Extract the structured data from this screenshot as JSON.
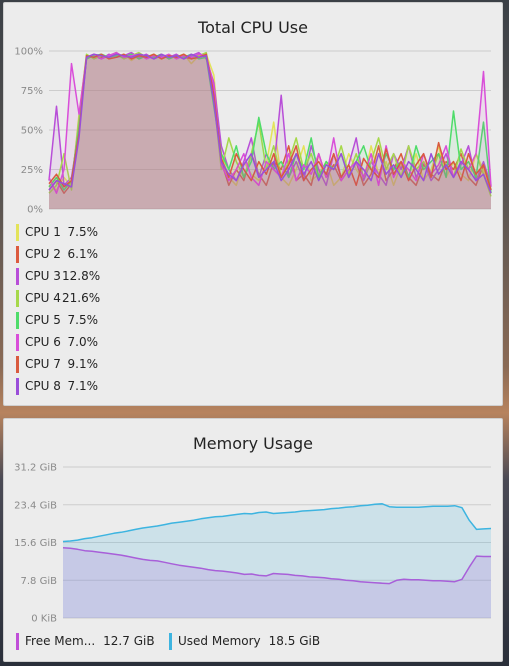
{
  "cpu_panel": {
    "title": "Total CPU Use",
    "legend": [
      {
        "name": "CPU 1",
        "value": "7.5%",
        "color": "#e3e35a"
      },
      {
        "name": "CPU 2",
        "value": "6.1%",
        "color": "#dc5a3e"
      },
      {
        "name": "CPU 3",
        "value": "12.8%",
        "color": "#b84ed8"
      },
      {
        "name": "CPU 4",
        "value": "21.6%",
        "color": "#a6d84a"
      },
      {
        "name": "CPU 5",
        "value": "7.5%",
        "color": "#4fdc6a"
      },
      {
        "name": "CPU 6",
        "value": "7.0%",
        "color": "#d94ed9"
      },
      {
        "name": "CPU 7",
        "value": "9.1%",
        "color": "#d95a3e"
      },
      {
        "name": "CPU 8",
        "value": "7.1%",
        "color": "#9a4ed9"
      }
    ]
  },
  "memory_panel": {
    "title": "Memory Usage",
    "legend": [
      {
        "name": "Free Mem...",
        "value": "12.7 GiB",
        "color": "#c04ed8"
      },
      {
        "name": "Used Memory",
        "value": "18.5 GiB",
        "color": "#3db4e0"
      }
    ]
  },
  "chart_data": [
    {
      "type": "line",
      "title": "Total CPU Use",
      "y_tick_labels": [
        "100%",
        "75%",
        "50%",
        "25%",
        "0%"
      ],
      "ylim": [
        0,
        100
      ],
      "grid": true,
      "legend_placement": "below",
      "x": [
        0,
        1,
        2,
        3,
        4,
        5,
        6,
        7,
        8,
        9,
        10,
        11,
        12,
        13,
        14,
        15,
        16,
        17,
        18,
        19,
        20,
        21,
        22,
        23,
        24,
        25,
        26,
        27,
        28,
        29,
        30,
        31,
        32,
        33,
        34,
        35,
        36,
        37,
        38,
        39,
        40,
        41,
        42,
        43,
        44,
        45,
        46,
        47,
        48,
        49,
        50,
        51,
        52,
        53,
        54,
        55,
        56,
        57,
        58,
        59
      ],
      "series": [
        {
          "name": "CPU 1",
          "values": [
            15,
            12,
            20,
            14,
            60,
            97,
            96,
            98,
            95,
            97,
            98,
            94,
            97,
            96,
            98,
            95,
            97,
            96,
            98,
            92,
            97,
            98,
            85,
            35,
            20,
            15,
            30,
            22,
            18,
            28,
            55,
            20,
            15,
            25,
            40,
            18,
            22,
            30,
            15,
            20,
            35,
            25,
            18,
            40,
            22,
            30,
            15,
            28,
            20,
            35,
            18,
            25,
            40,
            20,
            30,
            22,
            18,
            35,
            25,
            10
          ]
        },
        {
          "name": "CPU 2",
          "values": [
            12,
            18,
            10,
            16,
            55,
            95,
            98,
            96,
            97,
            99,
            96,
            98,
            95,
            97,
            96,
            98,
            95,
            97,
            96,
            95,
            98,
            96,
            75,
            30,
            15,
            25,
            18,
            35,
            22,
            15,
            30,
            25,
            40,
            18,
            22,
            15,
            35,
            20,
            28,
            18,
            25,
            30,
            15,
            22,
            40,
            18,
            25,
            35,
            20,
            15,
            28,
            22,
            18,
            30,
            25,
            35,
            20,
            15,
            28,
            12
          ]
        },
        {
          "name": "CPU 3",
          "values": [
            18,
            65,
            15,
            20,
            50,
            96,
            97,
            95,
            98,
            96,
            97,
            99,
            96,
            98,
            95,
            97,
            96,
            98,
            95,
            97,
            99,
            95,
            80,
            40,
            25,
            18,
            30,
            45,
            20,
            35,
            25,
            72,
            20,
            30,
            18,
            40,
            25,
            15,
            35,
            20,
            28,
            45,
            18,
            30,
            22,
            15,
            35,
            25,
            40,
            20,
            30,
            18,
            25,
            35,
            20,
            28,
            40,
            18,
            30,
            15
          ]
        },
        {
          "name": "CPU 4",
          "values": [
            10,
            15,
            35,
            12,
            58,
            98,
            95,
            97,
            96,
            98,
            95,
            97,
            99,
            96,
            98,
            95,
            97,
            96,
            98,
            95,
            97,
            99,
            70,
            25,
            45,
            30,
            20,
            35,
            55,
            25,
            40,
            20,
            30,
            45,
            25,
            35,
            20,
            30,
            25,
            40,
            22,
            35,
            20,
            30,
            45,
            25,
            35,
            20,
            40,
            25,
            30,
            22,
            35,
            28,
            20,
            38,
            25,
            35,
            22,
            8
          ]
        },
        {
          "name": "CPU 5",
          "values": [
            14,
            20,
            12,
            18,
            52,
            95,
            97,
            98,
            96,
            97,
            96,
            98,
            95,
            97,
            96,
            98,
            95,
            97,
            96,
            98,
            95,
            96,
            65,
            35,
            25,
            40,
            20,
            30,
            58,
            35,
            25,
            30,
            20,
            35,
            25,
            45,
            20,
            30,
            25,
            35,
            20,
            30,
            40,
            25,
            20,
            35,
            25,
            30,
            20,
            40,
            25,
            30,
            35,
            20,
            62,
            25,
            30,
            20,
            55,
            10
          ]
        },
        {
          "name": "CPU 6",
          "values": [
            20,
            10,
            25,
            92,
            60,
            96,
            98,
            95,
            97,
            99,
            96,
            97,
            98,
            95,
            97,
            96,
            98,
            95,
            97,
            96,
            98,
            97,
            78,
            28,
            18,
            25,
            35,
            20,
            15,
            30,
            25,
            20,
            35,
            18,
            28,
            22,
            35,
            20,
            45,
            18,
            25,
            30,
            20,
            35,
            15,
            40,
            20,
            30,
            25,
            18,
            35,
            22,
            28,
            40,
            20,
            30,
            25,
            35,
            87,
            14
          ]
        },
        {
          "name": "CPU 7",
          "values": [
            16,
            22,
            14,
            18,
            48,
            97,
            96,
            98,
            95,
            96,
            98,
            95,
            97,
            96,
            98,
            95,
            97,
            96,
            98,
            95,
            96,
            98,
            72,
            32,
            20,
            35,
            25,
            18,
            30,
            22,
            35,
            20,
            28,
            40,
            18,
            25,
            30,
            22,
            35,
            20,
            28,
            15,
            32,
            25,
            20,
            38,
            22,
            30,
            18,
            28,
            35,
            20,
            42,
            25,
            30,
            18,
            35,
            22,
            28,
            12
          ]
        },
        {
          "name": "CPU 8",
          "values": [
            12,
            18,
            16,
            14,
            45,
            96,
            98,
            97,
            96,
            98,
            97,
            96,
            98,
            97,
            95,
            98,
            96,
            97,
            95,
            98,
            96,
            97,
            68,
            30,
            22,
            18,
            28,
            35,
            20,
            25,
            30,
            18,
            25,
            35,
            22,
            30,
            18,
            28,
            25,
            35,
            20,
            30,
            25,
            18,
            35,
            22,
            28,
            20,
            30,
            25,
            18,
            35,
            22,
            28,
            20,
            30,
            25,
            18,
            22,
            10
          ]
        }
      ]
    },
    {
      "type": "area",
      "title": "Memory Usage",
      "y_tick_labels": [
        "31.2 GiB",
        "23.4 GiB",
        "15.6 GiB",
        "7.8 GiB",
        "0 KiB"
      ],
      "ylim": [
        0,
        31.2
      ],
      "grid": true,
      "legend_placement": "below",
      "x": [
        0,
        1,
        2,
        3,
        4,
        5,
        6,
        7,
        8,
        9,
        10,
        11,
        12,
        13,
        14,
        15,
        16,
        17,
        18,
        19,
        20,
        21,
        22,
        23,
        24,
        25,
        26,
        27,
        28,
        29,
        30,
        31,
        32,
        33,
        34,
        35,
        36,
        37,
        38,
        39,
        40,
        41,
        42,
        43,
        44,
        45,
        46,
        47,
        48,
        49,
        50,
        51,
        52,
        53,
        54,
        55,
        56,
        57,
        58,
        59
      ],
      "series": [
        {
          "name": "Free Mem...",
          "values": [
            14.5,
            14.4,
            14.2,
            13.9,
            13.8,
            13.6,
            13.4,
            13.2,
            13.0,
            12.7,
            12.4,
            12.1,
            11.9,
            11.8,
            11.5,
            11.2,
            10.9,
            10.7,
            10.5,
            10.3,
            10.0,
            9.8,
            9.7,
            9.5,
            9.3,
            9.0,
            9.1,
            8.8,
            8.7,
            9.2,
            9.1,
            9.0,
            8.8,
            8.7,
            8.5,
            8.4,
            8.3,
            8.1,
            8.0,
            7.8,
            7.7,
            7.5,
            7.4,
            7.3,
            7.2,
            7.1,
            7.8,
            8.0,
            7.9,
            7.9,
            7.8,
            7.7,
            7.7,
            7.6,
            7.5,
            8.0,
            10.5,
            12.8,
            12.7,
            12.7
          ]
        },
        {
          "name": "Used Memory",
          "values": [
            15.8,
            15.9,
            16.1,
            16.4,
            16.6,
            16.9,
            17.2,
            17.5,
            17.7,
            18.0,
            18.3,
            18.6,
            18.8,
            19.0,
            19.3,
            19.6,
            19.8,
            20.0,
            20.2,
            20.5,
            20.7,
            20.9,
            21.0,
            21.2,
            21.4,
            21.6,
            21.5,
            21.8,
            21.9,
            21.6,
            21.7,
            21.8,
            21.9,
            22.1,
            22.2,
            22.3,
            22.4,
            22.6,
            22.7,
            22.9,
            23.0,
            23.2,
            23.3,
            23.5,
            23.6,
            23.0,
            22.9,
            22.9,
            22.9,
            22.9,
            23.0,
            23.1,
            23.1,
            23.1,
            23.2,
            22.8,
            20.2,
            18.3,
            18.4,
            18.5
          ]
        }
      ]
    }
  ]
}
